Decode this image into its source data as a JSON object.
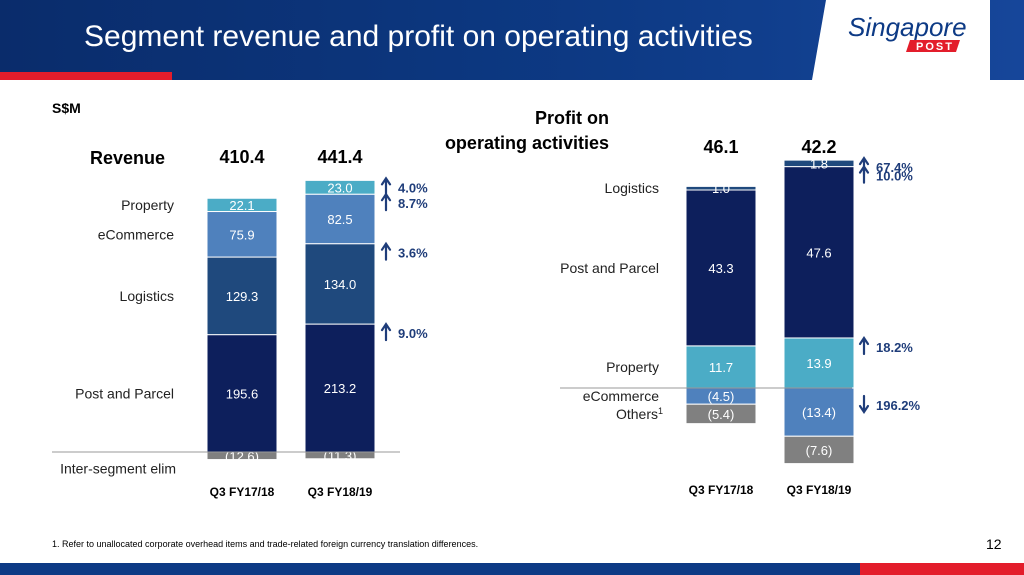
{
  "header": {
    "title": "Segment revenue and profit on operating activities"
  },
  "logo": {
    "text_main": "Singapore",
    "text_sub": "POST"
  },
  "unit": "S$M",
  "page_number": "12",
  "footnote": "1. Refer to unallocated corporate overhead items and trade-related foreign currency translation differences.",
  "colors": {
    "property": "#4bacc6",
    "ecommerce": "#4f81bd",
    "logistics": "#1f497d",
    "post_parcel": "#0d1f5c",
    "others": "#808080",
    "growth_text": "#1f3d7a"
  },
  "chart_data": [
    {
      "type": "bar",
      "stacked": true,
      "title": "Revenue",
      "categories": [
        "Q3 FY17/18",
        "Q3 FY18/19"
      ],
      "totals": [
        "410.4",
        "441.4"
      ],
      "series": [
        {
          "name": "Inter-segment elim",
          "values": [
            -12.6,
            -11.3
          ],
          "labels": [
            "(12.6)",
            "(11.3)"
          ],
          "color": "#808080"
        },
        {
          "name": "Post and Parcel",
          "values": [
            195.6,
            213.2
          ],
          "labels": [
            "195.6",
            "213.2"
          ],
          "color": "#0d1f5c"
        },
        {
          "name": "Logistics",
          "values": [
            129.3,
            134.0
          ],
          "labels": [
            "129.3",
            "134.0"
          ],
          "color": "#1f497d"
        },
        {
          "name": "eCommerce",
          "values": [
            75.9,
            82.5
          ],
          "labels": [
            "75.9",
            "82.5"
          ],
          "color": "#4f81bd"
        },
        {
          "name": "Property",
          "values": [
            22.1,
            23.0
          ],
          "labels": [
            "22.1",
            "23.0"
          ],
          "color": "#4bacc6"
        }
      ],
      "growth": [
        {
          "series": "Property",
          "direction": "up",
          "label": "4.0%"
        },
        {
          "series": "eCommerce",
          "direction": "up",
          "label": "8.7%"
        },
        {
          "series": "Logistics",
          "direction": "up",
          "label": "3.6%"
        },
        {
          "series": "Post and Parcel",
          "direction": "up",
          "label": "9.0%"
        }
      ]
    },
    {
      "type": "bar",
      "stacked": true,
      "title": "Profit on operating activities",
      "title_lines": [
        "Profit on",
        "operating activities"
      ],
      "categories": [
        "Q3 FY17/18",
        "Q3 FY18/19"
      ],
      "totals": [
        "46.1",
        "42.2"
      ],
      "series": [
        {
          "name": "Property",
          "values": [
            11.7,
            13.9
          ],
          "labels": [
            "11.7",
            "13.9"
          ],
          "color": "#4bacc6"
        },
        {
          "name": "Post and Parcel",
          "values": [
            43.3,
            47.6
          ],
          "labels": [
            "43.3",
            "47.6"
          ],
          "color": "#0d1f5c"
        },
        {
          "name": "Logistics",
          "values": [
            1.0,
            1.8
          ],
          "labels": [
            "1.0",
            "1.8"
          ],
          "color": "#1f497d"
        },
        {
          "name": "eCommerce",
          "values": [
            -4.5,
            -13.4
          ],
          "labels": [
            "(4.5)",
            "(13.4)"
          ],
          "color": "#4f81bd"
        },
        {
          "name": "Others",
          "name_sup": "1",
          "values": [
            -5.4,
            -7.6
          ],
          "labels": [
            "(5.4)",
            "(7.6)"
          ],
          "color": "#808080"
        }
      ],
      "growth": [
        {
          "series": "Property",
          "direction": "up",
          "label": "18.2%"
        },
        {
          "series": "Post and Parcel",
          "direction": "up",
          "label": "10.0%"
        },
        {
          "series": "Logistics",
          "direction": "up",
          "label": "67.4%"
        },
        {
          "series": "eCommerce",
          "direction": "down",
          "label": "196.2%"
        }
      ]
    }
  ]
}
